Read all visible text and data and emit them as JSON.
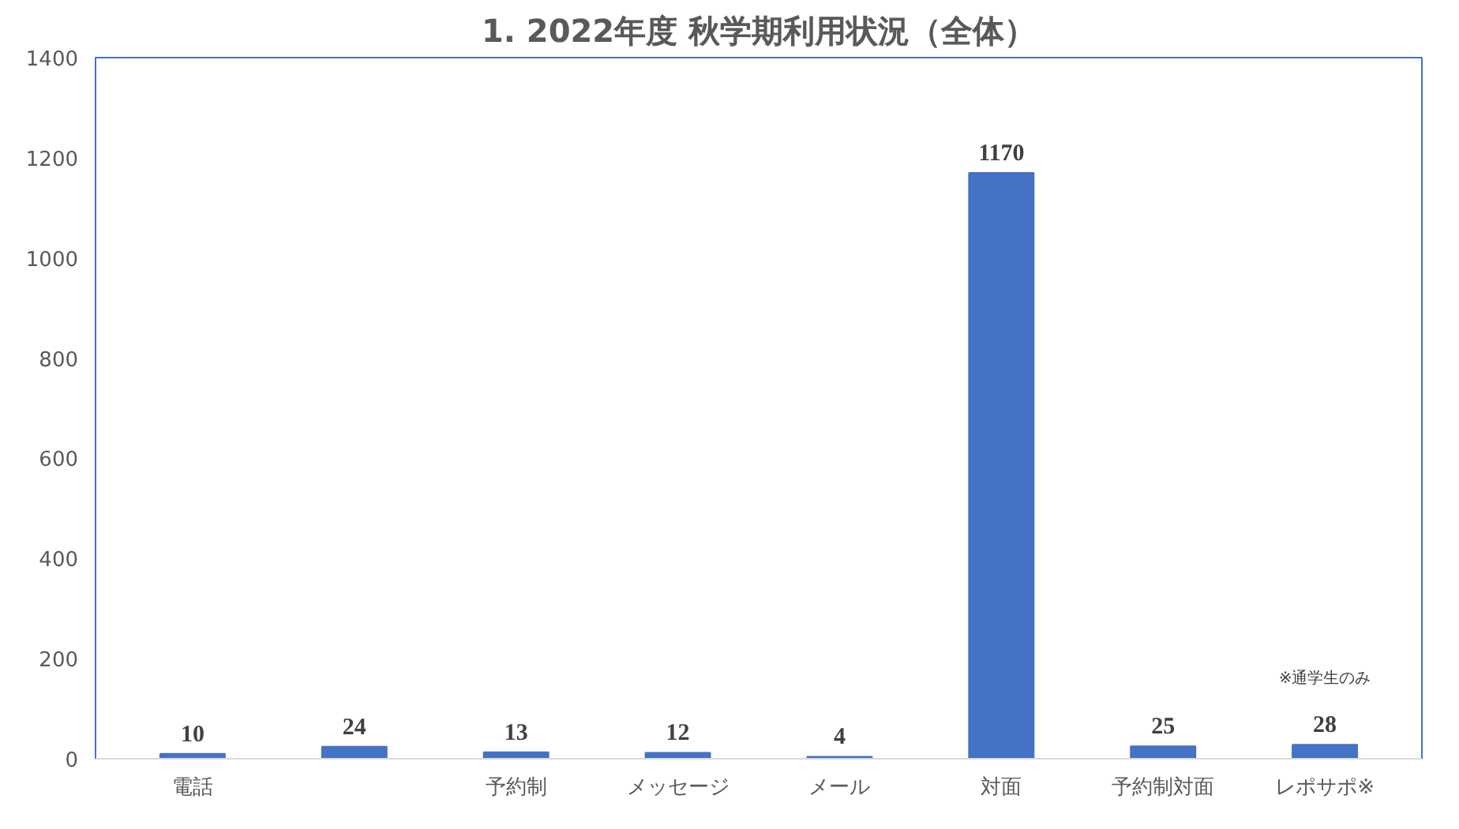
{
  "chart_data": {
    "type": "bar",
    "title": "1. 2022年度 秋学期利用状況（全体）",
    "categories": [
      "電話",
      null,
      "予約制",
      "メッセージ",
      "メール",
      "対面",
      "予約制対面",
      "レポサポ※"
    ],
    "values": [
      10,
      24,
      13,
      12,
      4,
      1170,
      25,
      28
    ],
    "color": "#4472c4",
    "ylim": [
      0,
      1400
    ],
    "yticks": [
      0,
      200,
      400,
      600,
      800,
      1000,
      1200,
      1400
    ],
    "grid": false,
    "data_labels": true,
    "annotations": [
      "※通学生のみ"
    ]
  }
}
